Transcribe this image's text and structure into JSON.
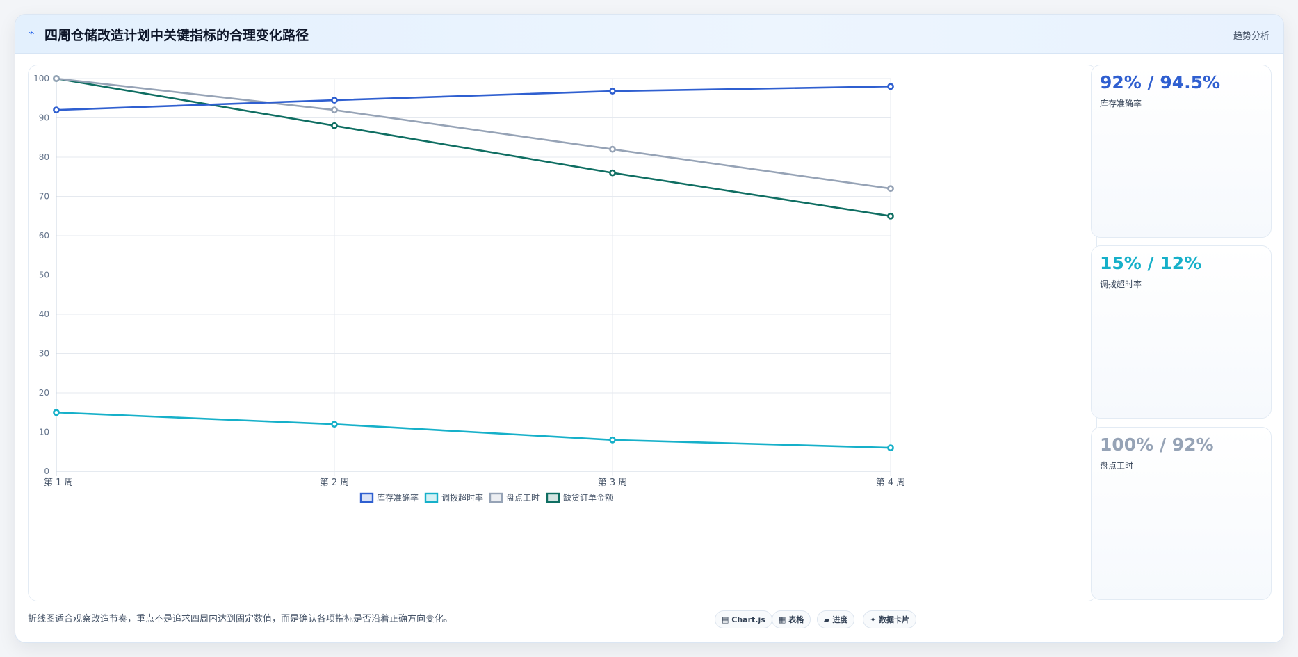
{
  "header": {
    "icon": "trend-line-icon",
    "title": "四周仓储改造计划中关键指标的合理变化路径",
    "tag": "趋势分析"
  },
  "chart_data": {
    "type": "line",
    "categories": [
      "第 1 周",
      "第 2 周",
      "第 3 周",
      "第 4 周"
    ],
    "ylim": [
      0,
      100
    ],
    "yticks": [
      "0",
      "10",
      "20",
      "30",
      "40",
      "50",
      "60",
      "70",
      "80",
      "90",
      "100"
    ],
    "grid": true,
    "legend_position": "bottom",
    "series": [
      {
        "name": "库存准确率",
        "color": "#2f5fd0",
        "values": [
          92,
          94.5,
          96.8,
          98
        ]
      },
      {
        "name": "调拨超时率",
        "color": "#16b0c9",
        "values": [
          15,
          12,
          8,
          6
        ]
      },
      {
        "name": "盘点工时",
        "color": "#96a3b6",
        "values": [
          100,
          92,
          82,
          72
        ]
      },
      {
        "name": "缺货订单金额",
        "color": "#0f6e62",
        "values": [
          100,
          88,
          76,
          65
        ]
      }
    ]
  },
  "side_cards": [
    {
      "value": "92% / 94.5%",
      "label": "库存准确率",
      "color": "#2f5fd0"
    },
    {
      "value": "15% / 12%",
      "label": "调拨超时率",
      "color": "#16b0c9"
    },
    {
      "value": "100% / 92%",
      "label": "盘点工时",
      "color": "#96a3b6"
    }
  ],
  "footer": {
    "note": "折线图适合观察改造节奏，重点不是追求四周内达到固定数值，而是确认各项指标是否沿着正确方向变化。",
    "pills": [
      {
        "icon": "chart-icon",
        "icon_glyph": "▤",
        "label": "Chart.js"
      },
      {
        "icon": "table-icon",
        "icon_glyph": "▦",
        "label": "表格"
      },
      {
        "icon": "progress-icon",
        "icon_glyph": "▰",
        "label": "进度"
      },
      {
        "icon": "card-icon",
        "icon_glyph": "✦",
        "label": "数据卡片"
      }
    ]
  }
}
